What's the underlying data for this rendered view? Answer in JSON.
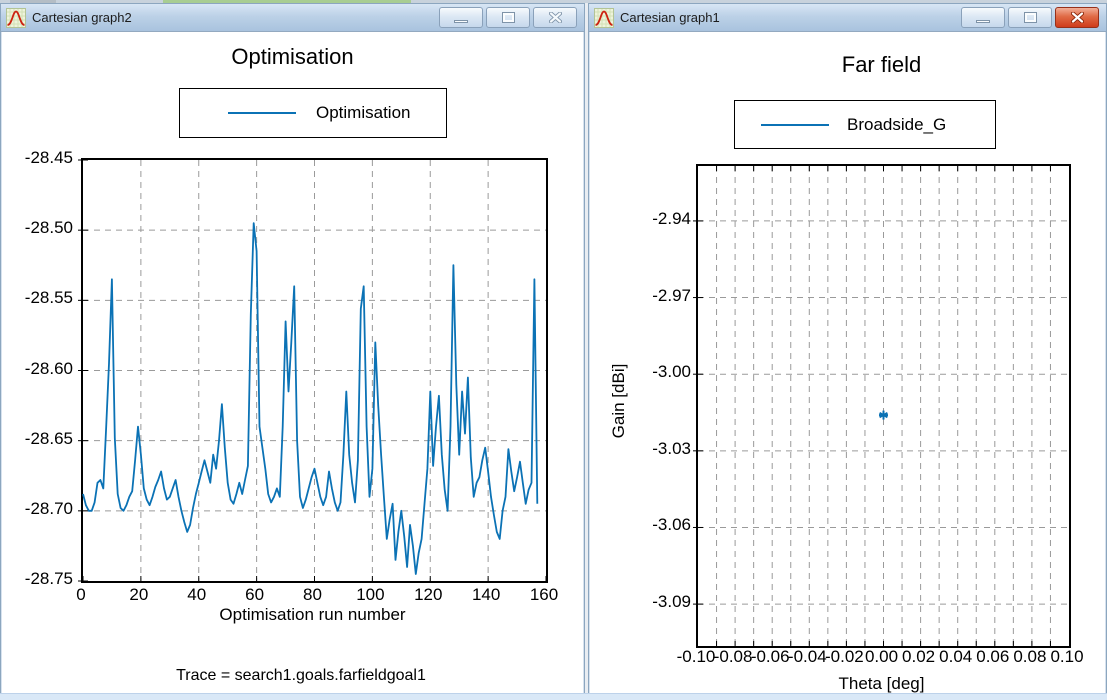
{
  "windows": {
    "left": {
      "title": "Cartesian graph2",
      "active": false,
      "buttons": [
        "minimize",
        "maximize",
        "close"
      ]
    },
    "right": {
      "title": "Cartesian graph1",
      "active": true,
      "buttons": [
        "minimize",
        "maximize",
        "close"
      ]
    }
  },
  "colors": {
    "trace_blue": "#0b72b5",
    "grid_gray": "#9a9a9a",
    "titlebar_blue": "#bcd1e7",
    "close_button_red": "#cf3c1b",
    "tab_strip_green": "#a8cd92"
  },
  "icons": {
    "app_icon": "graph-curve-icon",
    "minimize": "minimize-icon",
    "maximize": "maximize-icon",
    "close": "close-icon"
  },
  "chart_data": [
    {
      "type": "line",
      "title": "Optimisation",
      "xlabel": "Optimisation run number",
      "ylabel": "",
      "note": "Trace = search1.goals.farfieldgoal1",
      "legend_position": "top",
      "grid": true,
      "xlim": [
        0,
        160
      ],
      "ylim": [
        -28.75,
        -28.45
      ],
      "xtick_values": [
        0,
        20,
        40,
        60,
        80,
        100,
        120,
        140,
        160
      ],
      "xtick_labels": [
        "0",
        "20",
        "40",
        "60",
        "80",
        "100",
        "120",
        "140",
        "160"
      ],
      "ytick_values": [
        -28.45,
        -28.5,
        -28.55,
        -28.6,
        -28.65,
        -28.7,
        -28.75
      ],
      "ytick_labels": [
        "-28.45",
        "-28.50",
        "-28.55",
        "-28.60",
        "-28.65",
        "-28.70",
        "-28.75"
      ],
      "series": [
        {
          "name": "Optimisation",
          "color": "#0b72b5",
          "x_start": 0,
          "x_step": 1,
          "values": [
            -28.688,
            -28.696,
            -28.7,
            -28.7,
            -28.694,
            -28.68,
            -28.678,
            -28.684,
            -28.64,
            -28.595,
            -28.535,
            -28.648,
            -28.688,
            -28.698,
            -28.7,
            -28.696,
            -28.69,
            -28.686,
            -28.664,
            -28.64,
            -28.66,
            -28.684,
            -28.692,
            -28.696,
            -28.69,
            -28.683,
            -28.678,
            -28.672,
            -28.684,
            -28.692,
            -28.69,
            -28.684,
            -28.678,
            -28.69,
            -28.7,
            -28.708,
            -28.715,
            -28.71,
            -28.698,
            -28.688,
            -28.68,
            -28.672,
            -28.664,
            -28.672,
            -28.68,
            -28.66,
            -28.67,
            -28.65,
            -28.624,
            -28.655,
            -28.68,
            -28.692,
            -28.695,
            -28.688,
            -28.68,
            -28.688,
            -28.678,
            -28.668,
            -28.56,
            -28.495,
            -28.515,
            -28.64,
            -28.655,
            -28.67,
            -28.688,
            -28.694,
            -28.69,
            -28.684,
            -28.69,
            -28.64,
            -28.565,
            -28.615,
            -28.58,
            -28.54,
            -28.65,
            -28.69,
            -28.698,
            -28.692,
            -28.684,
            -28.676,
            -28.67,
            -28.68,
            -28.69,
            -28.696,
            -28.69,
            -28.672,
            -28.684,
            -28.694,
            -28.7,
            -28.694,
            -28.66,
            -28.615,
            -28.66,
            -28.68,
            -28.694,
            -28.664,
            -28.556,
            -28.54,
            -28.64,
            -28.69,
            -28.67,
            -28.58,
            -28.625,
            -28.66,
            -28.69,
            -28.72,
            -28.706,
            -28.695,
            -28.735,
            -28.715,
            -28.7,
            -28.718,
            -28.74,
            -28.71,
            -28.725,
            -28.745,
            -28.73,
            -28.72,
            -28.695,
            -28.67,
            -28.615,
            -28.668,
            -28.64,
            -28.618,
            -28.66,
            -28.685,
            -28.7,
            -28.64,
            -28.525,
            -28.61,
            -28.66,
            -28.615,
            -28.645,
            -28.605,
            -28.662,
            -28.69,
            -28.68,
            -28.676,
            -28.664,
            -28.655,
            -28.672,
            -28.69,
            -28.703,
            -28.715,
            -28.72,
            -28.7,
            -28.69,
            -28.656,
            -28.672,
            -28.686,
            -28.676,
            -28.665,
            -28.68,
            -28.695,
            -28.685,
            -28.68,
            -28.535,
            -28.695
          ]
        }
      ]
    },
    {
      "type": "scatter",
      "title": "Far field",
      "xlabel": "Theta [deg]",
      "ylabel": "Gain [dBi]",
      "legend_position": "top",
      "grid": true,
      "xlim": [
        -0.1,
        0.1
      ],
      "ylim": [
        -3.1064,
        -2.9185
      ],
      "x_minor_grid_step": 0.01,
      "xtick_values": [
        -0.1,
        -0.08,
        -0.06,
        -0.04,
        -0.02,
        0.0,
        0.02,
        0.04,
        0.06,
        0.08,
        0.1
      ],
      "xtick_labels": [
        "-0.10",
        "-0.08",
        "-0.06",
        "-0.04",
        "-0.02",
        "0.00",
        "0.02",
        "0.04",
        "0.06",
        "0.08",
        "0.10"
      ],
      "ytick_values": [
        -2.94,
        -2.97,
        -3.0,
        -3.03,
        -3.06,
        -3.09
      ],
      "ytick_labels": [
        "-2.94",
        "-2.97",
        "-3.00",
        "-3.03",
        "-3.06",
        "-3.09"
      ],
      "series": [
        {
          "name": "Broadside_G",
          "color": "#0b72b5",
          "marker": "*",
          "points": [
            [
              0.0,
              -3.016
            ]
          ]
        }
      ]
    }
  ]
}
